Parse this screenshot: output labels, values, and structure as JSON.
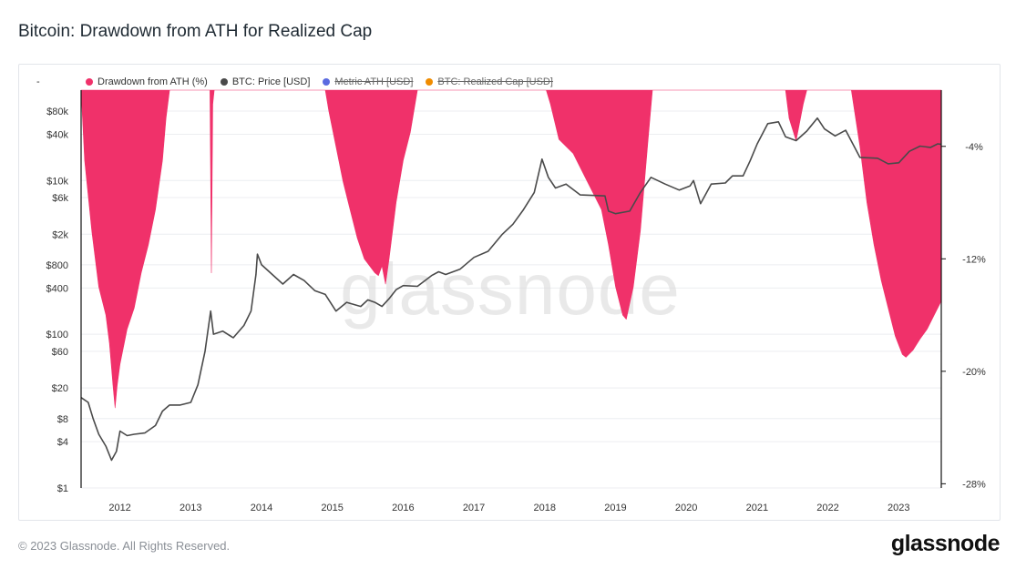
{
  "page": {
    "title": "Bitcoin: Drawdown from ATH for Realized Cap",
    "footer": "© 2023 Glassnode. All Rights Reserved.",
    "brand": "glassnode",
    "watermark": "glassnode"
  },
  "legend": {
    "toggle": "-",
    "items": [
      {
        "label": "Drawdown from ATH (%)",
        "color": "#f0316a",
        "active": true
      },
      {
        "label": "BTC: Price [USD]",
        "color": "#4a4a4a",
        "active": true
      },
      {
        "label": "Metric ATH [USD]",
        "color": "#5b6be0",
        "active": false
      },
      {
        "label": "BTC: Realized Cap [USD]",
        "color": "#f08c00",
        "active": false
      }
    ]
  },
  "colors": {
    "drawdown": "#f0316a",
    "price": "#4a4a4a",
    "grid": "#eceef1",
    "axis": "#111111"
  },
  "chart_data": {
    "type": "area",
    "title": "Bitcoin: Drawdown from ATH for Realized Cap",
    "x_range": [
      2011.45,
      2023.6
    ],
    "x_ticks": [
      {
        "value": 2012,
        "label": "2012"
      },
      {
        "value": 2013,
        "label": "2013"
      },
      {
        "value": 2014,
        "label": "2014"
      },
      {
        "value": 2015,
        "label": "2015"
      },
      {
        "value": 2016,
        "label": "2016"
      },
      {
        "value": 2017,
        "label": "2017"
      },
      {
        "value": 2018,
        "label": "2018"
      },
      {
        "value": 2019,
        "label": "2019"
      },
      {
        "value": 2020,
        "label": "2020"
      },
      {
        "value": 2021,
        "label": "2021"
      },
      {
        "value": 2022,
        "label": "2022"
      },
      {
        "value": 2023,
        "label": "2023"
      }
    ],
    "y_left": {
      "scale": "log",
      "unit": "USD",
      "range": [
        1,
        150000
      ],
      "ticks": [
        {
          "value": 1,
          "label": "$1"
        },
        {
          "value": 4,
          "label": "$4"
        },
        {
          "value": 8,
          "label": "$8"
        },
        {
          "value": 20,
          "label": "$20"
        },
        {
          "value": 60,
          "label": "$60"
        },
        {
          "value": 100,
          "label": "$100"
        },
        {
          "value": 400,
          "label": "$400"
        },
        {
          "value": 800,
          "label": "$800"
        },
        {
          "value": 2000,
          "label": "$2k"
        },
        {
          "value": 6000,
          "label": "$6k"
        },
        {
          "value": 10000,
          "label": "$10k"
        },
        {
          "value": 40000,
          "label": "$40k"
        },
        {
          "value": 80000,
          "label": "$80k"
        }
      ]
    },
    "y_right": {
      "scale": "linear",
      "unit": "%",
      "range": [
        -28.3,
        0
      ],
      "ticks": [
        {
          "value": -4,
          "label": "-4%"
        },
        {
          "value": -12,
          "label": "-12%"
        },
        {
          "value": -20,
          "label": "-20%"
        },
        {
          "value": -28,
          "label": "-28%"
        }
      ]
    },
    "series": [
      {
        "name": "Drawdown from ATH (%)",
        "axis": "right",
        "style": "area",
        "points": [
          [
            2011.45,
            0
          ],
          [
            2011.5,
            -5
          ],
          [
            2011.6,
            -10
          ],
          [
            2011.7,
            -14
          ],
          [
            2011.8,
            -16
          ],
          [
            2011.85,
            -18
          ],
          [
            2011.9,
            -21
          ],
          [
            2011.93,
            -22.6
          ],
          [
            2011.96,
            -21
          ],
          [
            2012.0,
            -19.5
          ],
          [
            2012.1,
            -17
          ],
          [
            2012.2,
            -15.5
          ],
          [
            2012.3,
            -13
          ],
          [
            2012.4,
            -11
          ],
          [
            2012.5,
            -8.5
          ],
          [
            2012.6,
            -5
          ],
          [
            2012.65,
            -2
          ],
          [
            2012.7,
            0
          ],
          [
            2013.27,
            0
          ],
          [
            2013.29,
            -13
          ],
          [
            2013.31,
            -1
          ],
          [
            2013.33,
            0
          ],
          [
            2014.9,
            0
          ],
          [
            2014.95,
            -1.5
          ],
          [
            2015.05,
            -4
          ],
          [
            2015.15,
            -6.5
          ],
          [
            2015.25,
            -8.5
          ],
          [
            2015.35,
            -10.5
          ],
          [
            2015.45,
            -12
          ],
          [
            2015.6,
            -13
          ],
          [
            2015.65,
            -13.2
          ],
          [
            2015.7,
            -12.5
          ],
          [
            2015.75,
            -13.8
          ],
          [
            2015.8,
            -12
          ],
          [
            2015.9,
            -8
          ],
          [
            2016.0,
            -5
          ],
          [
            2016.1,
            -3
          ],
          [
            2016.2,
            0
          ],
          [
            2018.02,
            0
          ],
          [
            2018.08,
            -1
          ],
          [
            2018.2,
            -3.5
          ],
          [
            2018.4,
            -4.5
          ],
          [
            2018.6,
            -6.5
          ],
          [
            2018.8,
            -8.5
          ],
          [
            2018.9,
            -11
          ],
          [
            2019.0,
            -14
          ],
          [
            2019.1,
            -16
          ],
          [
            2019.15,
            -16.3
          ],
          [
            2019.25,
            -14
          ],
          [
            2019.35,
            -10
          ],
          [
            2019.45,
            -4
          ],
          [
            2019.52,
            0
          ],
          [
            2021.4,
            0
          ],
          [
            2021.45,
            -2
          ],
          [
            2021.55,
            -3.6
          ],
          [
            2021.65,
            -1
          ],
          [
            2021.7,
            0
          ],
          [
            2022.33,
            0
          ],
          [
            2022.45,
            -4
          ],
          [
            2022.55,
            -8
          ],
          [
            2022.65,
            -11
          ],
          [
            2022.75,
            -13.5
          ],
          [
            2022.85,
            -15.5
          ],
          [
            2022.95,
            -17.5
          ],
          [
            2023.05,
            -18.8
          ],
          [
            2023.1,
            -19
          ],
          [
            2023.2,
            -18.5
          ],
          [
            2023.3,
            -17.7
          ],
          [
            2023.4,
            -17
          ],
          [
            2023.5,
            -16
          ],
          [
            2023.6,
            -15
          ]
        ]
      },
      {
        "name": "BTC: Price [USD]",
        "axis": "left",
        "style": "line",
        "points": [
          [
            2011.45,
            15
          ],
          [
            2011.55,
            13
          ],
          [
            2011.62,
            8
          ],
          [
            2011.7,
            5
          ],
          [
            2011.8,
            3.5
          ],
          [
            2011.88,
            2.3
          ],
          [
            2011.95,
            3
          ],
          [
            2012.0,
            5.5
          ],
          [
            2012.1,
            4.8
          ],
          [
            2012.2,
            5
          ],
          [
            2012.35,
            5.2
          ],
          [
            2012.5,
            6.5
          ],
          [
            2012.6,
            10
          ],
          [
            2012.7,
            12
          ],
          [
            2012.85,
            12
          ],
          [
            2013.0,
            13
          ],
          [
            2013.1,
            22
          ],
          [
            2013.2,
            60
          ],
          [
            2013.28,
            200
          ],
          [
            2013.32,
            100
          ],
          [
            2013.45,
            110
          ],
          [
            2013.6,
            90
          ],
          [
            2013.75,
            130
          ],
          [
            2013.85,
            200
          ],
          [
            2013.92,
            600
          ],
          [
            2013.94,
            1100
          ],
          [
            2014.0,
            800
          ],
          [
            2014.15,
            600
          ],
          [
            2014.3,
            450
          ],
          [
            2014.45,
            600
          ],
          [
            2014.6,
            500
          ],
          [
            2014.75,
            370
          ],
          [
            2014.9,
            330
          ],
          [
            2015.05,
            200
          ],
          [
            2015.2,
            260
          ],
          [
            2015.4,
            230
          ],
          [
            2015.5,
            280
          ],
          [
            2015.6,
            260
          ],
          [
            2015.7,
            230
          ],
          [
            2015.8,
            290
          ],
          [
            2015.9,
            380
          ],
          [
            2016.0,
            430
          ],
          [
            2016.2,
            420
          ],
          [
            2016.4,
            580
          ],
          [
            2016.5,
            650
          ],
          [
            2016.6,
            600
          ],
          [
            2016.8,
            700
          ],
          [
            2017.0,
            1000
          ],
          [
            2017.2,
            1200
          ],
          [
            2017.4,
            2000
          ],
          [
            2017.55,
            2700
          ],
          [
            2017.7,
            4200
          ],
          [
            2017.85,
            7000
          ],
          [
            2017.96,
            19000
          ],
          [
            2018.05,
            11000
          ],
          [
            2018.15,
            8000
          ],
          [
            2018.3,
            9000
          ],
          [
            2018.5,
            6500
          ],
          [
            2018.7,
            6400
          ],
          [
            2018.85,
            6300
          ],
          [
            2018.9,
            4000
          ],
          [
            2019.0,
            3700
          ],
          [
            2019.2,
            4000
          ],
          [
            2019.35,
            7000
          ],
          [
            2019.5,
            11000
          ],
          [
            2019.7,
            9000
          ],
          [
            2019.9,
            7500
          ],
          [
            2020.05,
            8500
          ],
          [
            2020.1,
            10000
          ],
          [
            2020.2,
            5000
          ],
          [
            2020.35,
            9000
          ],
          [
            2020.55,
            9300
          ],
          [
            2020.65,
            11500
          ],
          [
            2020.8,
            11500
          ],
          [
            2020.9,
            18000
          ],
          [
            2021.0,
            30000
          ],
          [
            2021.15,
            55000
          ],
          [
            2021.3,
            58000
          ],
          [
            2021.4,
            37000
          ],
          [
            2021.55,
            33000
          ],
          [
            2021.7,
            44000
          ],
          [
            2021.85,
            65000
          ],
          [
            2021.95,
            47000
          ],
          [
            2022.1,
            38000
          ],
          [
            2022.25,
            45000
          ],
          [
            2022.35,
            30000
          ],
          [
            2022.45,
            20000
          ],
          [
            2022.7,
            19500
          ],
          [
            2022.85,
            16500
          ],
          [
            2023.0,
            17000
          ],
          [
            2023.15,
            24000
          ],
          [
            2023.3,
            28000
          ],
          [
            2023.45,
            27000
          ],
          [
            2023.55,
            30000
          ],
          [
            2023.6,
            29500
          ]
        ]
      }
    ]
  }
}
